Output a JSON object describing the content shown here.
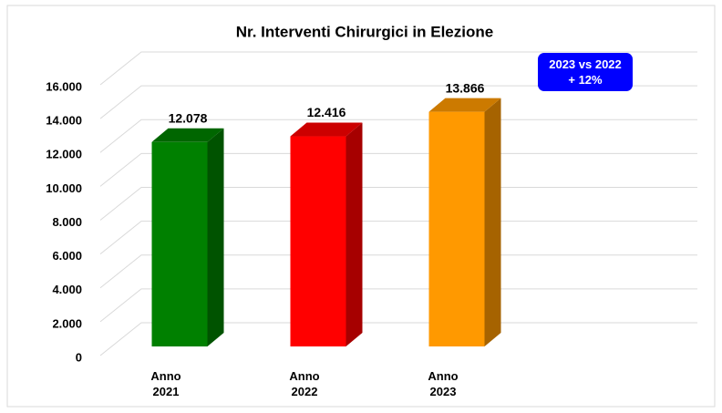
{
  "chart_data": {
    "type": "bar3d",
    "title": "Nr. Interventi Chirurgici in Elezione",
    "categories": [
      "Anno 2021",
      "Anno 2022",
      "Anno 2023"
    ],
    "values": [
      12078,
      12416,
      13866
    ],
    "value_labels": [
      "12.078",
      "12.416",
      "13.866"
    ],
    "colors": [
      "#008000",
      "#ff0000",
      "#ff9900"
    ],
    "ylim": [
      0,
      16000
    ],
    "yticks": [
      0,
      {
        "value": 2000,
        "label": "2.000"
      },
      {
        "value": 4000,
        "label": "4.000"
      },
      {
        "value": 6000,
        "label": "6.000"
      },
      {
        "value": 8000,
        "label": "8.000"
      },
      {
        "value": 10000,
        "label": "10.000"
      },
      {
        "value": 12000,
        "label": "12.000"
      },
      {
        "value": 14000,
        "label": "14.000"
      },
      {
        "value": 16000,
        "label": "16.000"
      }
    ],
    "grid": true,
    "annotations": [
      "2023 vs 2022",
      "+ 12%"
    ]
  }
}
